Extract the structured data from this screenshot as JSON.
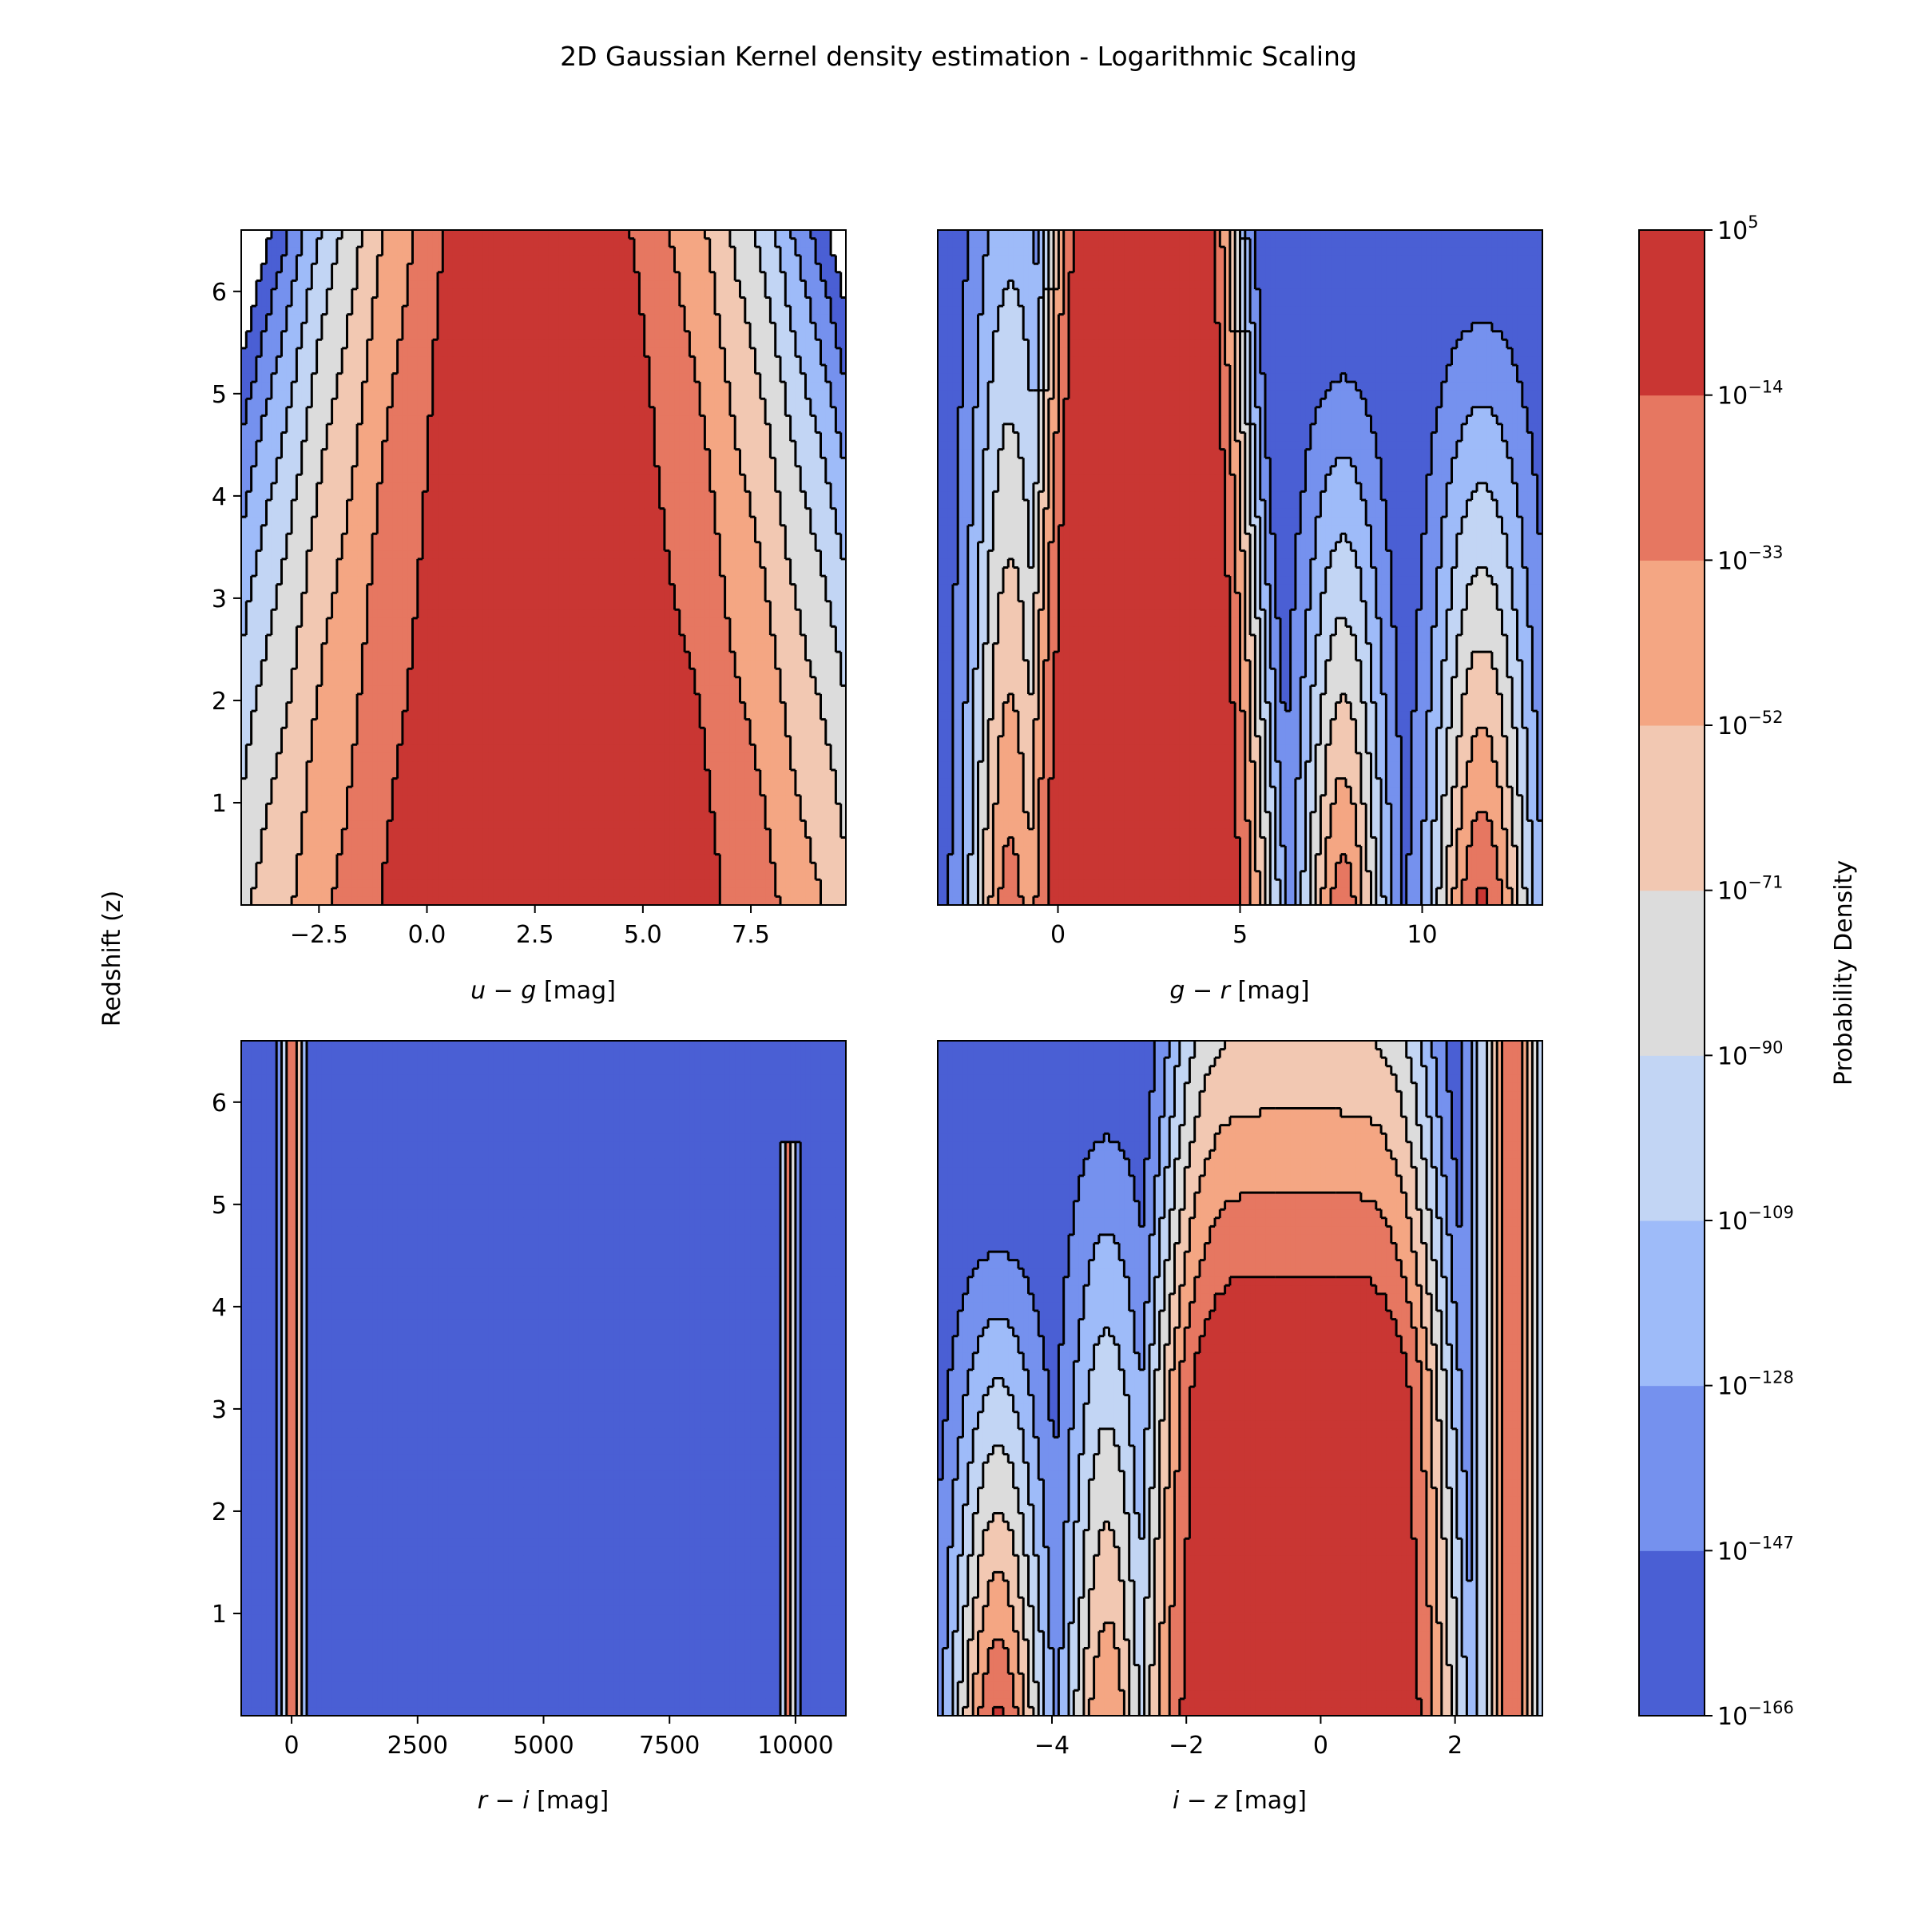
{
  "chart_data": {
    "type": "contour",
    "title": "2D Gaussian Kernel density estimation - Logarithmic Scaling",
    "shared_ylabel": "Redshift (z)",
    "y_range": [
      0,
      6.6
    ],
    "y_ticks": [
      1,
      2,
      3,
      4,
      5,
      6
    ],
    "colorbar": {
      "label": "Probability Density",
      "tick_exponents": [
        -166,
        -147,
        -128,
        -109,
        -90,
        -71,
        -52,
        -33,
        -14,
        5
      ],
      "band_colors": [
        "#4a5fd4",
        "#7591ee",
        "#9ebbf9",
        "#c2d5f4",
        "#dcdcdc",
        "#f2c8b2",
        "#f4a683",
        "#e67761",
        "#c93633"
      ]
    },
    "panels": [
      {
        "xlabel_var": "u − g",
        "xlabel_unit": "[mag]",
        "x_range": [
          -4.3,
          9.7
        ],
        "x_ticks": [
          -2.5,
          0.0,
          2.5,
          5.0,
          7.5
        ],
        "x_tick_labels": [
          "−2.5",
          "0.0",
          "2.5",
          "5.0",
          "7.5"
        ],
        "show_y_ticks": true
      },
      {
        "xlabel_var": "g − r",
        "xlabel_unit": "[mag]",
        "x_range": [
          -3.3,
          13.3
        ],
        "x_ticks": [
          0,
          5,
          10
        ],
        "x_tick_labels": [
          "0",
          "5",
          "10"
        ],
        "show_y_ticks": false
      },
      {
        "xlabel_var": "r − i",
        "xlabel_unit": "[mag]",
        "x_range": [
          -1000,
          11000
        ],
        "x_ticks": [
          0,
          2500,
          5000,
          7500,
          10000
        ],
        "x_tick_labels": [
          "0",
          "2500",
          "5000",
          "7500",
          "10000"
        ],
        "show_y_ticks": true
      },
      {
        "xlabel_var": "i − z",
        "xlabel_unit": "[mag]",
        "x_range": [
          -5.7,
          3.3
        ],
        "x_ticks": [
          -4,
          -2,
          0,
          2
        ],
        "x_tick_labels": [
          "−4",
          "−2",
          "0",
          "2"
        ],
        "show_y_ticks": false
      }
    ]
  }
}
